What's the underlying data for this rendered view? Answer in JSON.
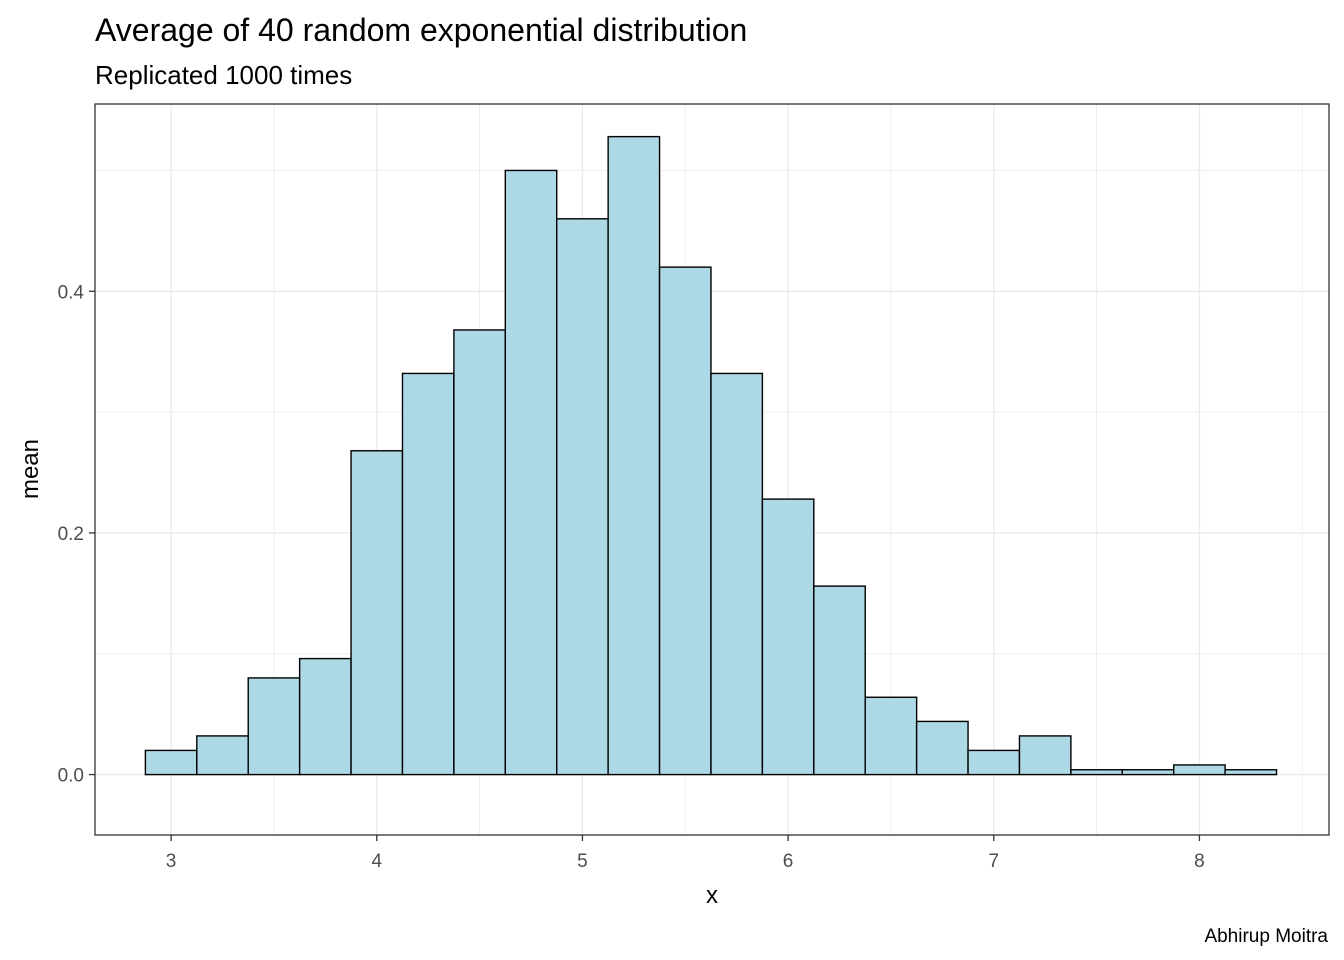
{
  "chart_data": {
    "type": "bar",
    "title": "Average of 40 random exponential distribution",
    "subtitle": "Replicated 1000 times",
    "xlabel": "x",
    "ylabel": "mean",
    "caption": "Abhirup Moitra",
    "xlim": [
      2.63,
      8.63
    ],
    "ylim": [
      -0.05,
      0.555
    ],
    "x_ticks": [
      "3",
      "4",
      "5",
      "6",
      "7",
      "8"
    ],
    "y_ticks": [
      "0.0",
      "0.2",
      "0.4"
    ],
    "grid": true,
    "bar_fill": "#add8e6",
    "bar_stroke": "#000000",
    "bins": [
      {
        "x0": 2.875,
        "x1": 3.125,
        "value": 0.02
      },
      {
        "x0": 3.125,
        "x1": 3.375,
        "value": 0.032
      },
      {
        "x0": 3.375,
        "x1": 3.625,
        "value": 0.08
      },
      {
        "x0": 3.625,
        "x1": 3.875,
        "value": 0.096
      },
      {
        "x0": 3.875,
        "x1": 4.125,
        "value": 0.268
      },
      {
        "x0": 4.125,
        "x1": 4.375,
        "value": 0.332
      },
      {
        "x0": 4.375,
        "x1": 4.625,
        "value": 0.368
      },
      {
        "x0": 4.625,
        "x1": 4.875,
        "value": 0.5
      },
      {
        "x0": 4.875,
        "x1": 5.125,
        "value": 0.46
      },
      {
        "x0": 5.125,
        "x1": 5.375,
        "value": 0.528
      },
      {
        "x0": 5.375,
        "x1": 5.625,
        "value": 0.42
      },
      {
        "x0": 5.625,
        "x1": 5.875,
        "value": 0.332
      },
      {
        "x0": 5.875,
        "x1": 6.125,
        "value": 0.228
      },
      {
        "x0": 6.125,
        "x1": 6.375,
        "value": 0.156
      },
      {
        "x0": 6.375,
        "x1": 6.625,
        "value": 0.064
      },
      {
        "x0": 6.625,
        "x1": 6.875,
        "value": 0.044
      },
      {
        "x0": 6.875,
        "x1": 7.125,
        "value": 0.02
      },
      {
        "x0": 7.125,
        "x1": 7.375,
        "value": 0.032
      },
      {
        "x0": 7.375,
        "x1": 7.625,
        "value": 0.004
      },
      {
        "x0": 7.625,
        "x1": 7.875,
        "value": 0.004
      },
      {
        "x0": 7.875,
        "x1": 8.125,
        "value": 0.008
      },
      {
        "x0": 8.125,
        "x1": 8.375,
        "value": 0.004
      }
    ]
  }
}
